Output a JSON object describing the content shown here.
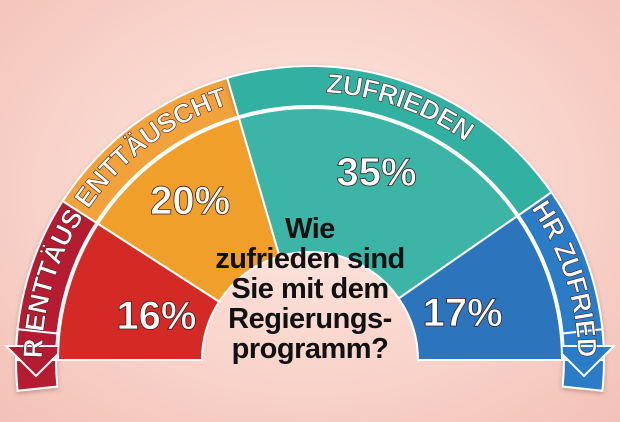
{
  "question_lines": [
    "Wie",
    "zufrieden sind",
    "Sie mit dem",
    "Regierungs-",
    "programm?"
  ],
  "chart_data": {
    "type": "pie",
    "subtype": "semicircle",
    "categories": [
      "SEHR ENTTÄUSCHT",
      "ENTTÄUSCHT",
      "ZUFRIEDEN",
      "SEHR ZUFRIEDEN"
    ],
    "values": [
      16,
      20,
      35,
      17
    ],
    "value_labels": [
      "16%",
      "20%",
      "35%",
      "17%"
    ],
    "colors": {
      "SEHR ENTTÄUSCHT": "#d42a26",
      "ENTTÄUSCHT": "#f0a02a",
      "ZUFRIEDEN": "#3db5a6",
      "SEHR ZUFRIEDEN": "#2c74bb"
    },
    "band_colors": {
      "SEHR ENTTÄUSCHT": "#b51a33",
      "ENTTÄUSCHT": "#f2a23a",
      "ZUFRIEDEN": "#30b1a3",
      "SEHR ZUFRIEDEN": "#2a7cc7"
    }
  }
}
